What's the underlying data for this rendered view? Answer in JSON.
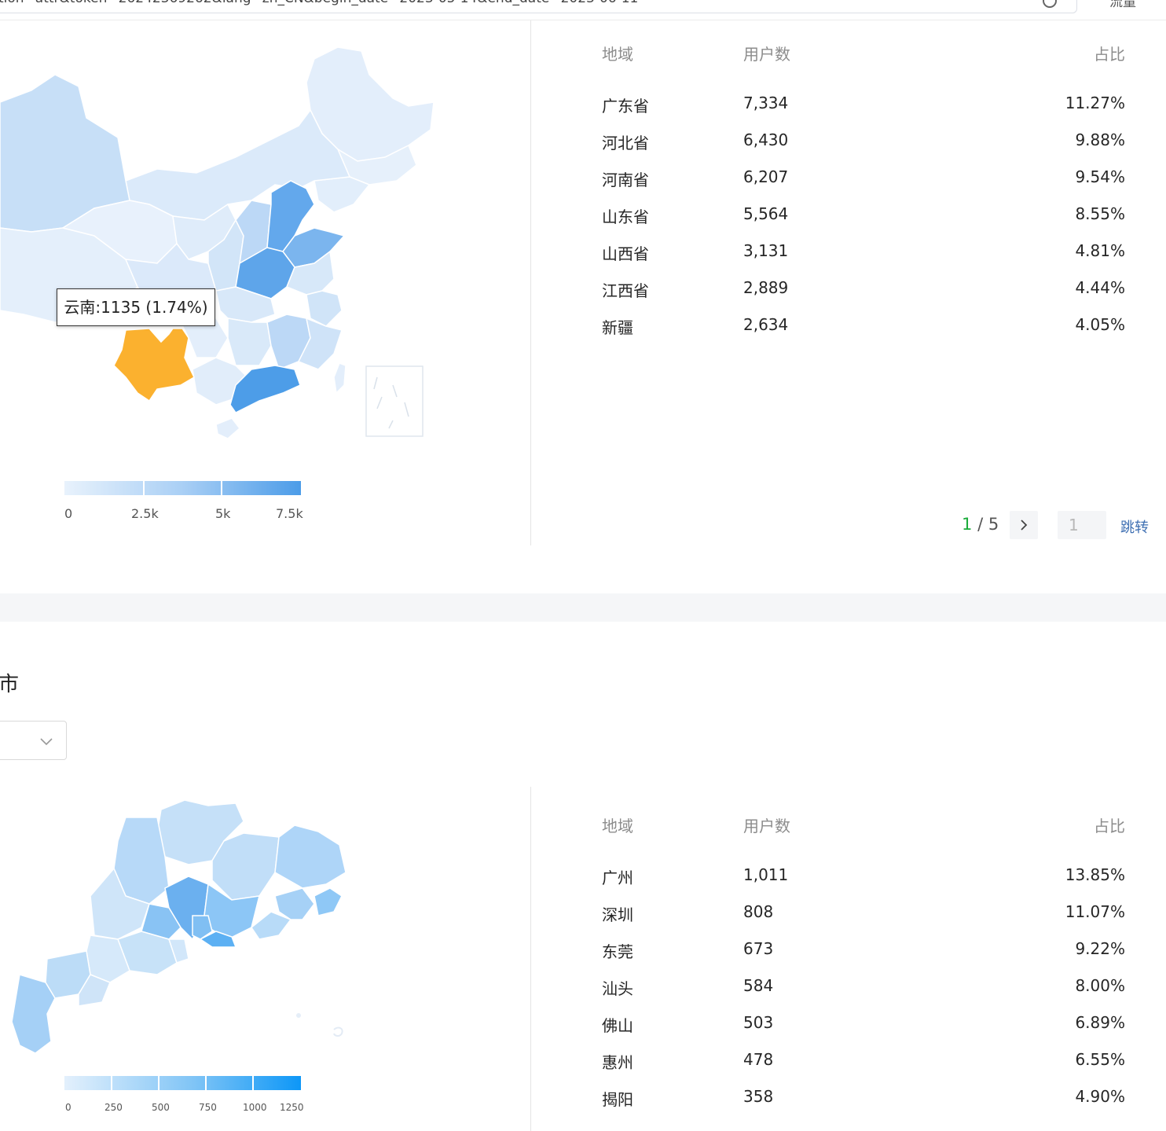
{
  "topbar": {
    "url": "tion=attr&token=26242369262&lang=zh_CN&begin_date=2023-05-14&end_date=2023-06-11",
    "right_label": "流量"
  },
  "province_section": {
    "tooltip": "云南:1135 (1.74%)",
    "legend_ticks": [
      "0",
      "2.5k",
      "5k",
      "7.5k"
    ],
    "table": {
      "headers": [
        "地域",
        "用户数",
        "占比"
      ],
      "rows": [
        {
          "region": "广东省",
          "users": "7,334",
          "ratio": "11.27%"
        },
        {
          "region": "河北省",
          "users": "6,430",
          "ratio": "9.88%"
        },
        {
          "region": "河南省",
          "users": "6,207",
          "ratio": "9.54%"
        },
        {
          "region": "山东省",
          "users": "5,564",
          "ratio": "8.55%"
        },
        {
          "region": "山西省",
          "users": "3,131",
          "ratio": "4.81%"
        },
        {
          "region": "江西省",
          "users": "2,889",
          "ratio": "4.44%"
        },
        {
          "region": "新疆",
          "users": "2,634",
          "ratio": "4.05%"
        }
      ]
    },
    "pager": {
      "current": "1",
      "separator": "/",
      "total": "5",
      "input_value": "1",
      "jump_label": "跳转"
    }
  },
  "city_section": {
    "title": "市",
    "legend_ticks": [
      "0",
      "250",
      "500",
      "750",
      "1000",
      "1250"
    ],
    "table": {
      "headers": [
        "地域",
        "用户数",
        "占比"
      ],
      "rows": [
        {
          "region": "广州",
          "users": "1,011",
          "ratio": "13.85%"
        },
        {
          "region": "深圳",
          "users": "808",
          "ratio": "11.07%"
        },
        {
          "region": "东莞",
          "users": "673",
          "ratio": "9.22%"
        },
        {
          "region": "汕头",
          "users": "584",
          "ratio": "8.00%"
        },
        {
          "region": "佛山",
          "users": "503",
          "ratio": "6.89%"
        },
        {
          "region": "惠州",
          "users": "478",
          "ratio": "6.55%"
        },
        {
          "region": "揭阳",
          "users": "358",
          "ratio": "4.90%"
        }
      ]
    }
  },
  "colors": {
    "low": "#e6f1fc",
    "mid": "#a9d0f5",
    "high": "#4c9ce8",
    "hover": "#fbb12f",
    "city_high": "#1d95f3",
    "pager_current": "#1aab3a",
    "jump_link": "#3e6fb2"
  }
}
